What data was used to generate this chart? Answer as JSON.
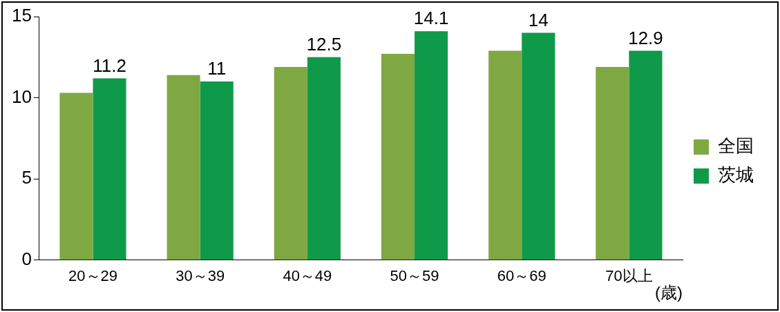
{
  "chart_data": {
    "type": "bar",
    "xlabel": "(歳)",
    "categories": [
      "20～29",
      "30～39",
      "40～49",
      "50～59",
      "60～69",
      "70以上"
    ],
    "series": [
      {
        "name": "全国",
        "color": "#7fa843",
        "values": [
          10.3,
          11.4,
          11.9,
          12.7,
          12.9,
          11.9
        ]
      },
      {
        "name": "茨城",
        "color": "#0f9a4a",
        "values": [
          11.2,
          11,
          12.5,
          14.1,
          14,
          12.9
        ],
        "value_labels": [
          "11.2",
          "11",
          "12.5",
          "14.1",
          "14",
          "12.9"
        ]
      }
    ],
    "ylim": [
      0,
      15
    ],
    "yticks": [
      0,
      5,
      10,
      15
    ],
    "legend": "right"
  }
}
